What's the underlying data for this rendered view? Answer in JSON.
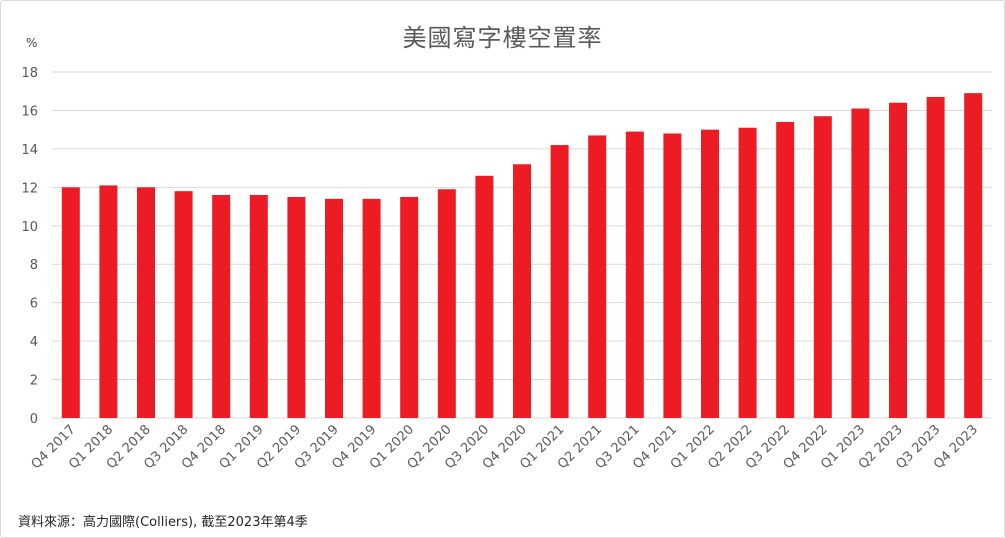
{
  "chart_data": {
    "type": "bar",
    "title": "美國寫字樓空置率",
    "unit_label": "%",
    "categories": [
      "Q4 2017",
      "Q1 2018",
      "Q2 2018",
      "Q3 2018",
      "Q4 2018",
      "Q1 2019",
      "Q2 2019",
      "Q3 2019",
      "Q4 2019",
      "Q1 2020",
      "Q2 2020",
      "Q3 2020",
      "Q4 2020",
      "Q1 2021",
      "Q2 2021",
      "Q3 2021",
      "Q4 2021",
      "Q1 2022",
      "Q2 2022",
      "Q3 2022",
      "Q4 2022",
      "Q1 2023",
      "Q2 2023",
      "Q3 2023",
      "Q4 2023"
    ],
    "values": [
      12.0,
      12.1,
      12.0,
      11.8,
      11.6,
      11.6,
      11.5,
      11.4,
      11.4,
      11.5,
      11.9,
      12.6,
      13.2,
      14.2,
      14.7,
      14.9,
      14.8,
      15.0,
      15.1,
      15.4,
      15.7,
      16.1,
      16.4,
      16.7,
      16.9
    ],
    "ylim": [
      0,
      18
    ],
    "yticks": [
      "0",
      "2",
      "4",
      "6",
      "8",
      "10",
      "12",
      "14",
      "16",
      "18"
    ],
    "grid": true,
    "bar_color": "#ed1c24",
    "grid_color": "#d9d9d9"
  },
  "source": "資料來源：高力國際(Colliers), 截至2023年第4季"
}
